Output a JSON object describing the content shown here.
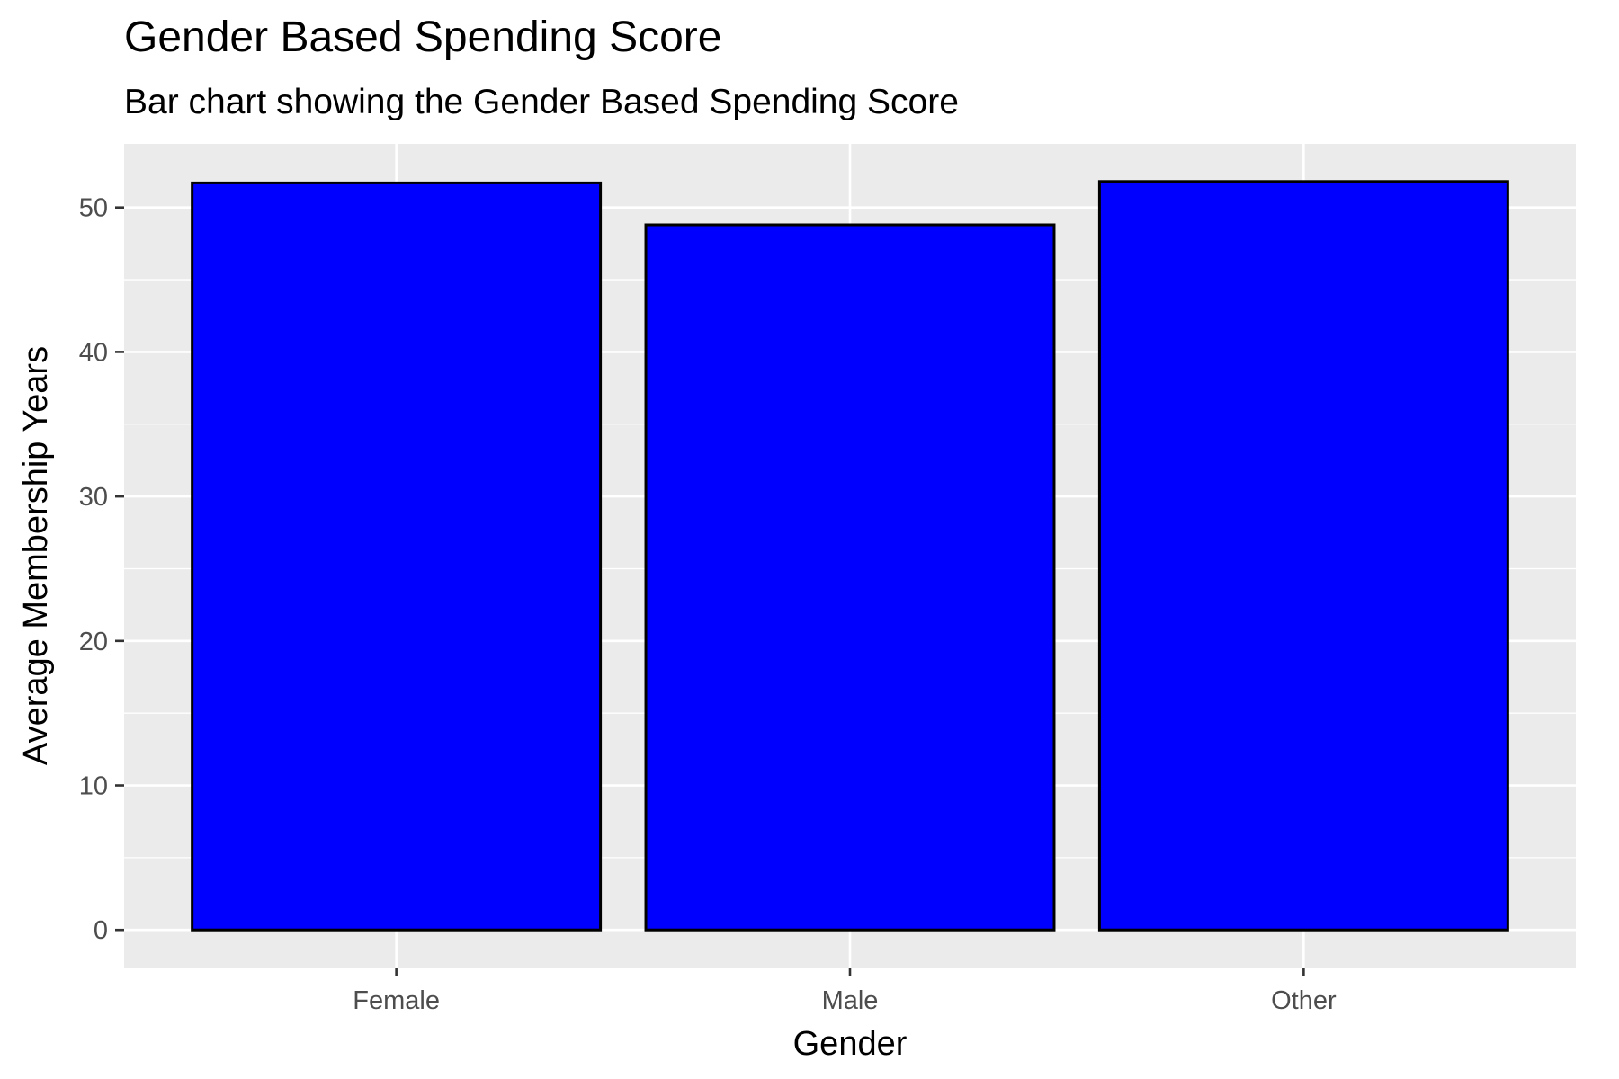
{
  "chart_data": {
    "type": "bar",
    "title": "Gender Based Spending Score",
    "subtitle": "Bar chart showing the Gender Based Spending Score",
    "xlabel": "Gender",
    "ylabel": "Average Membership Years",
    "categories": [
      "Female",
      "Male",
      "Other"
    ],
    "values": [
      51.7,
      48.8,
      51.8
    ],
    "ylim": [
      -2.6,
      54.4
    ],
    "yticks": [
      0,
      10,
      20,
      30,
      40,
      50
    ],
    "grid": true,
    "legend": "none",
    "colors": {
      "bar_fill": "#0000FF",
      "bar_outline": "#000000",
      "panel_background": "#EBEBEB",
      "grid_line": "#FFFFFF",
      "tick_label": "#4D4D4D",
      "text": "#000000"
    }
  }
}
